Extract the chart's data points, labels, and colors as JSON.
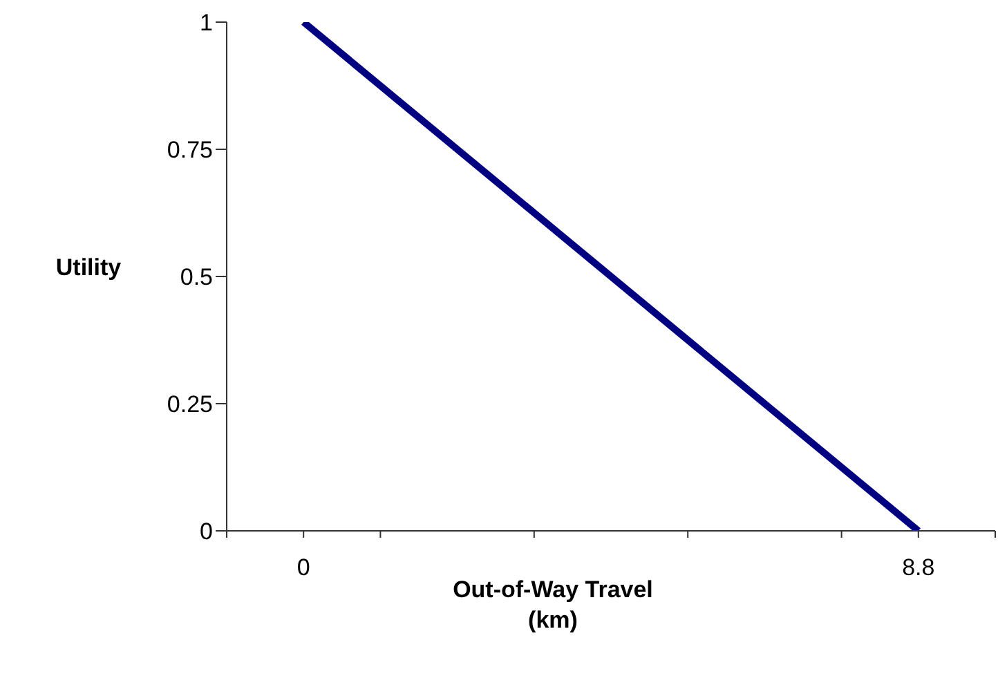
{
  "chart_data": {
    "type": "line",
    "xlabel": "Out-of-Way Travel (km)",
    "ylabel": "Utility",
    "x": [
      0,
      8.8
    ],
    "series": [
      {
        "color": "#000080",
        "values": [
          1,
          0
        ]
      }
    ],
    "xlim": [
      -1.1,
      9.9
    ],
    "xticks": [
      {
        "value": -1.1,
        "label": null
      },
      0,
      {
        "value": 1.1,
        "label": null
      },
      {
        "value": 3.3,
        "label": null
      },
      {
        "value": 5.5,
        "label": null
      },
      {
        "value": 7.7,
        "label": null
      },
      8.8,
      {
        "value": 9.9,
        "label": null
      }
    ],
    "ylim": [
      0,
      1
    ],
    "yticks": [
      0,
      0.25,
      0.5,
      0.75,
      1
    ],
    "grid": false,
    "marker": "none",
    "line_style": "solid"
  }
}
